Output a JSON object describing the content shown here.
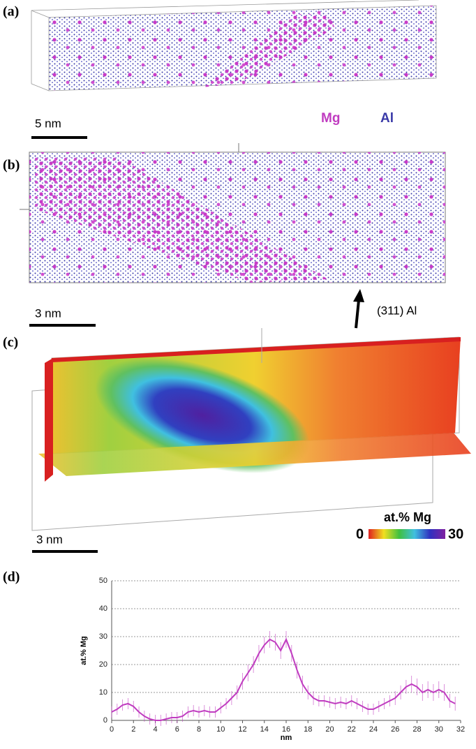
{
  "panels": {
    "a": {
      "label": "(a)",
      "scale_bar": "5 nm",
      "legend": [
        "Mg",
        "Al"
      ]
    },
    "b": {
      "label": "(b)",
      "scale_bar": "3 nm",
      "annotation": "(311) Al"
    },
    "c": {
      "label": "(c)",
      "scale_bar": "3 nm",
      "colorbar_title": "at.% Mg",
      "colorbar_min": 0,
      "colorbar_max": 30
    },
    "d": {
      "label": "(d)"
    }
  },
  "chart_data": {
    "type": "line",
    "xlabel": "nm",
    "ylabel": "at.% Mg",
    "color": "#c03cc0",
    "x": [
      0,
      0.5,
      1,
      1.5,
      2,
      2.5,
      3,
      3.5,
      4,
      4.5,
      5,
      5.5,
      6,
      6.5,
      7,
      7.5,
      8,
      8.5,
      9,
      9.5,
      10,
      10.5,
      11,
      11.5,
      12,
      12.5,
      13,
      13.5,
      14,
      14.5,
      15,
      15.5,
      16,
      16.5,
      17,
      17.5,
      18,
      18.5,
      19,
      19.5,
      20,
      20.5,
      21,
      21.5,
      22,
      22.5,
      23,
      23.5,
      24,
      24.5,
      25,
      25.5,
      26,
      26.5,
      27,
      27.5,
      28,
      28.5,
      29,
      29.5,
      30,
      30.5,
      31,
      31.5
    ],
    "values": [
      3,
      4,
      5.5,
      6,
      5,
      3,
      1.5,
      0.5,
      0,
      0,
      0.5,
      1,
      1,
      1.5,
      3,
      3.5,
      3,
      3.5,
      3,
      3,
      4.5,
      6,
      8,
      10,
      14,
      17,
      20,
      24,
      27,
      29,
      28,
      25,
      29,
      24,
      18,
      13,
      10,
      8,
      7,
      7,
      6.5,
      6,
      6.5,
      6,
      7,
      6,
      5,
      4,
      4,
      5,
      6,
      7,
      8,
      10,
      12,
      13,
      12,
      10,
      11,
      10,
      11,
      10,
      7,
      6
    ],
    "errors": [
      2,
      2,
      2,
      2,
      2,
      2,
      2,
      2,
      2,
      2,
      2,
      2,
      2,
      2,
      2,
      2,
      2,
      2,
      2,
      2,
      2,
      2,
      2.5,
      2.5,
      3,
      3,
      3,
      3,
      3,
      3,
      3,
      3,
      3,
      3,
      3,
      3,
      2.5,
      2.5,
      2,
      2,
      2,
      2,
      2,
      2,
      2,
      2,
      2,
      2,
      2,
      2,
      2,
      2,
      2.5,
      2.5,
      2.5,
      3,
      3,
      3,
      3,
      3,
      3,
      3,
      2.5,
      2.5
    ],
    "xlim": [
      0,
      32
    ],
    "xticks": [
      0,
      2,
      4,
      6,
      8,
      10,
      12,
      14,
      16,
      18,
      20,
      22,
      24,
      26,
      28,
      30,
      32
    ],
    "ylim": [
      0,
      50
    ],
    "yticks": [
      0,
      10,
      20,
      30,
      40,
      50
    ],
    "grid": true
  }
}
